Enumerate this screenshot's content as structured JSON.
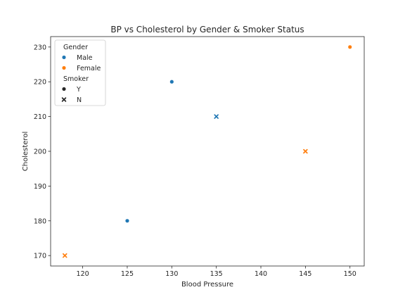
{
  "chart_data": {
    "type": "scatter",
    "title": "BP vs Cholesterol by Gender & Smoker Status",
    "xlabel": "Blood Pressure",
    "ylabel": "Cholesterol",
    "xlim": [
      116.4,
      151.6
    ],
    "ylim": [
      167,
      233
    ],
    "x_ticks": [
      120,
      125,
      130,
      135,
      140,
      145,
      150
    ],
    "y_ticks": [
      170,
      180,
      190,
      200,
      210,
      220,
      230
    ],
    "grid": false,
    "legend": {
      "placement": "top-left",
      "groups": [
        {
          "title": "Gender",
          "entries": [
            {
              "label": "Male",
              "color": "#1f77b4",
              "marker": "circle"
            },
            {
              "label": "Female",
              "color": "#ff7f0e",
              "marker": "circle"
            }
          ]
        },
        {
          "title": "Smoker",
          "entries": [
            {
              "label": "Y",
              "color": "#262626",
              "marker": "circle"
            },
            {
              "label": "N",
              "color": "#262626",
              "marker": "x"
            }
          ]
        }
      ]
    },
    "points": [
      {
        "x": 118,
        "y": 170,
        "gender": "Female",
        "smoker": "N"
      },
      {
        "x": 125,
        "y": 180,
        "gender": "Male",
        "smoker": "Y"
      },
      {
        "x": 130,
        "y": 220,
        "gender": "Male",
        "smoker": "Y"
      },
      {
        "x": 135,
        "y": 210,
        "gender": "Male",
        "smoker": "N"
      },
      {
        "x": 145,
        "y": 200,
        "gender": "Female",
        "smoker": "N"
      },
      {
        "x": 150,
        "y": 230,
        "gender": "Female",
        "smoker": "Y"
      }
    ]
  }
}
